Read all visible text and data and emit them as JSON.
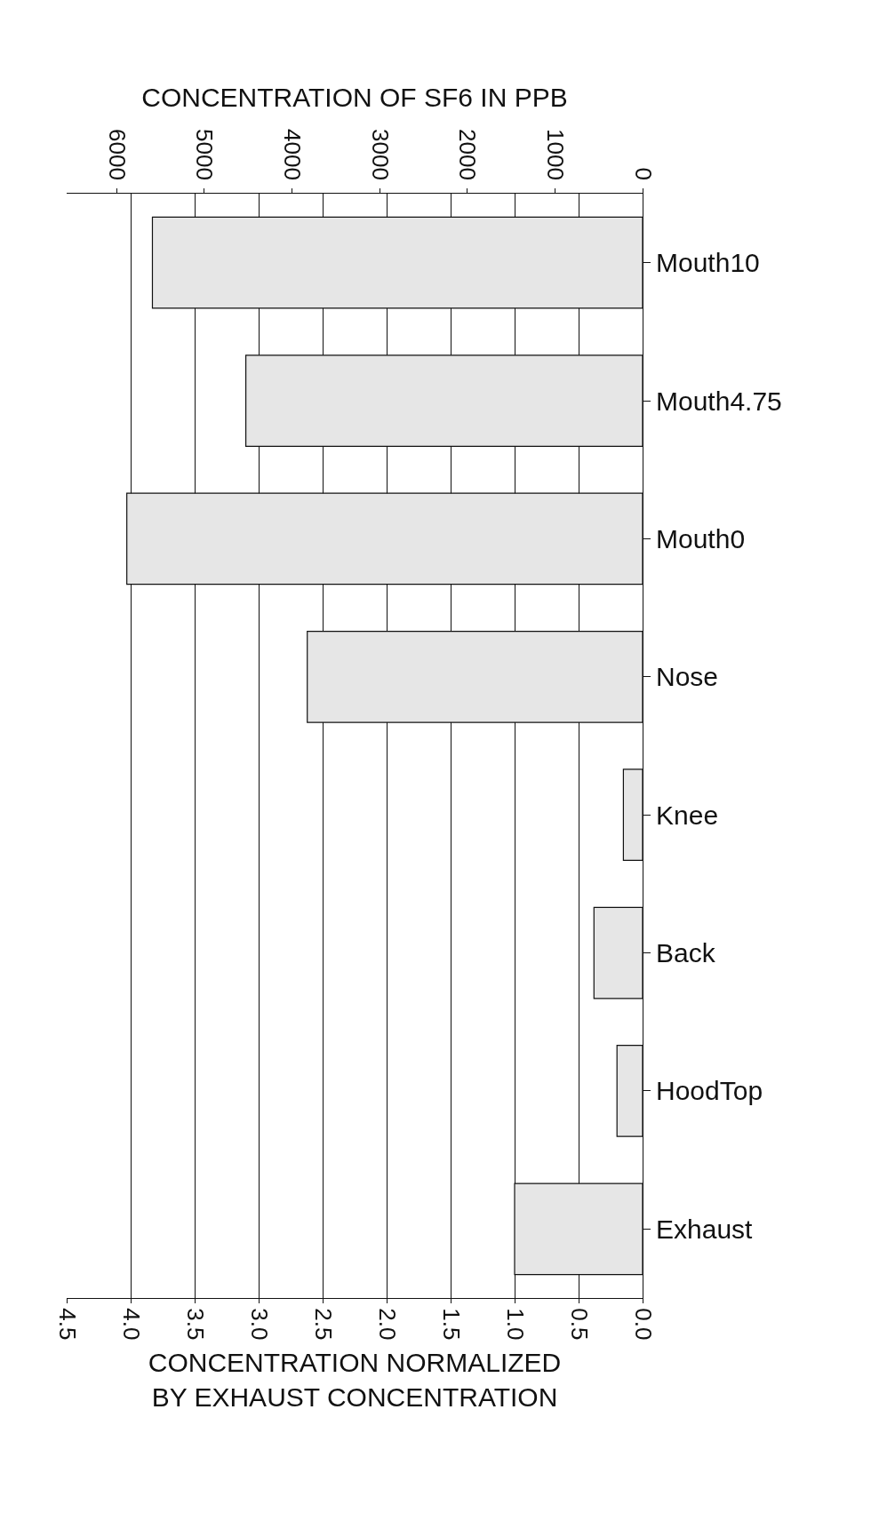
{
  "chart_data": {
    "type": "bar",
    "orientation": "horizontal",
    "categories": [
      "Mouth10",
      "Mouth4.75",
      "Mouth0",
      "Nose",
      "Knee",
      "Back",
      "HoodTop",
      "Exhaust"
    ],
    "values": [
      3.83,
      3.1,
      4.03,
      2.62,
      0.15,
      0.38,
      0.2,
      1.0
    ],
    "color": "#e6e6e6",
    "xlabel": "CONCENTRATION NORMALIZED\nBY EXHAUST CONCENTRATION",
    "x2label": "CONCENTRATION OF SF6 IN PPB",
    "xlim": [
      4.5,
      0
    ],
    "xticks": [
      {
        "value": 4.5,
        "label": "4.5"
      },
      {
        "value": 4.0,
        "label": "4.0"
      },
      {
        "value": 3.5,
        "label": "3.5"
      },
      {
        "value": 3.0,
        "label": "3.0"
      },
      {
        "value": 2.5,
        "label": "2.5"
      },
      {
        "value": 2.0,
        "label": "2.0"
      },
      {
        "value": 1.5,
        "label": "1.5"
      },
      {
        "value": 1.0,
        "label": "1.0"
      },
      {
        "value": 0.5,
        "label": "0.5"
      },
      {
        "value": 0.0,
        "label": "0.0"
      }
    ],
    "x2lim": [
      6570,
      0
    ],
    "x2ticks": [
      6000,
      5000,
      4000,
      3000,
      2000,
      1000,
      0
    ],
    "grid": "x"
  }
}
